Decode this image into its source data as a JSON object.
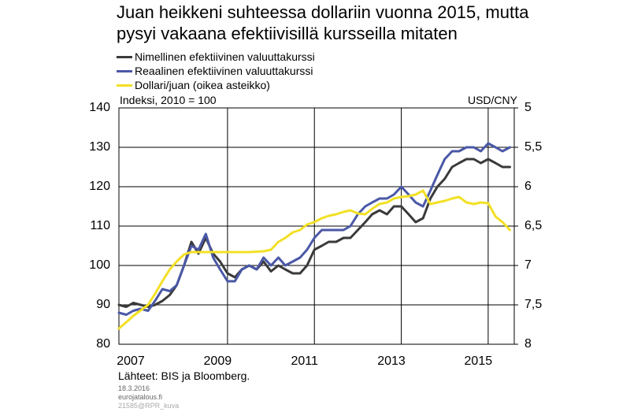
{
  "title_line1": "Juan heikkeni suhteessa dollariin vuonna 2015, mutta",
  "title_line2": "pysyi vakaana efektiivisillä kursseilla mitaten",
  "legend": [
    {
      "label": "Nimellinen efektiivinen valuuttakurssi",
      "color": "#3a3a3a"
    },
    {
      "label": "Reaalinen efektiivinen valuuttakurssi",
      "color": "#4a58a6"
    },
    {
      "label": "Dollari/juan (oikea asteikko)",
      "color": "#f2e024"
    }
  ],
  "axis_left_note": "Indeksi, 2010 = 100",
  "axis_right_note": "USD/CNY",
  "source": "Lähteet: BIS ja Bloomberg.",
  "footer": {
    "date": "18.3.2016",
    "site": "eurojatalous.fi",
    "code": "21585@RPR_kuva"
  },
  "chart_data": {
    "type": "line",
    "title": "Juan heikkeni suhteessa dollariin vuonna 2015, mutta pysyi vakaana efektiivisillä kursseilla mitaten",
    "xlim": [
      2007,
      2016.1
    ],
    "ylim_left": [
      80,
      140
    ],
    "ylim_right": [
      5,
      8
    ],
    "right_axis_reversed": true,
    "yticks_left": [
      "80",
      "90",
      "100",
      "110",
      "120",
      "130",
      "140"
    ],
    "yticks_left_values": [
      80,
      90,
      100,
      110,
      120,
      130,
      140
    ],
    "yticks_right": [
      "5",
      "5,5",
      "6",
      "6,5",
      "7",
      "7,5",
      "8"
    ],
    "yticks_right_values": [
      5,
      5.5,
      6,
      6.5,
      7,
      7.5,
      8
    ],
    "xticks": [
      "2007",
      "2009",
      "2011",
      "2013",
      "2015"
    ],
    "xticks_values": [
      2007,
      2009,
      2011,
      2013,
      2015
    ],
    "xlabel": "",
    "ylabel": "Indeksi, 2010 = 100",
    "ylabel_right": "USD/CNY",
    "grid": true,
    "legend_position": "top-left",
    "series": [
      {
        "name": "Nimellinen efektiivinen valuuttakurssi",
        "axis": "left",
        "color": "#3a3a3a",
        "x": [
          2007.0,
          2007.17,
          2007.33,
          2007.5,
          2007.67,
          2007.83,
          2008.0,
          2008.17,
          2008.33,
          2008.5,
          2008.67,
          2008.83,
          2009.0,
          2009.17,
          2009.33,
          2009.5,
          2009.67,
          2009.83,
          2010.0,
          2010.17,
          2010.33,
          2010.5,
          2010.67,
          2010.83,
          2011.0,
          2011.17,
          2011.33,
          2011.5,
          2011.67,
          2011.83,
          2012.0,
          2012.17,
          2012.33,
          2012.5,
          2012.67,
          2012.83,
          2013.0,
          2013.17,
          2013.33,
          2013.5,
          2013.67,
          2013.83,
          2014.0,
          2014.17,
          2014.33,
          2014.5,
          2014.67,
          2014.83,
          2015.0,
          2015.17,
          2015.33,
          2015.5,
          2015.67,
          2015.83,
          2016.0
        ],
        "values": [
          90,
          89.5,
          90.5,
          90,
          89.5,
          90,
          91,
          92.5,
          95,
          100,
          106,
          103,
          107,
          103,
          101,
          98,
          97,
          99,
          100,
          99,
          101,
          98.5,
          100,
          99,
          98,
          98,
          100,
          104,
          105,
          106,
          106,
          107,
          107,
          109,
          111,
          113,
          114,
          113,
          115,
          115,
          113,
          111,
          112,
          117,
          120,
          122,
          125,
          126,
          127,
          127,
          126,
          127,
          126,
          125,
          125
        ]
      },
      {
        "name": "Reaalinen efektiivinen valuuttakurssi",
        "axis": "left",
        "color": "#4a58a6",
        "x": [
          2007.0,
          2007.17,
          2007.33,
          2007.5,
          2007.67,
          2007.83,
          2008.0,
          2008.17,
          2008.33,
          2008.5,
          2008.67,
          2008.83,
          2009.0,
          2009.17,
          2009.33,
          2009.5,
          2009.67,
          2009.83,
          2010.0,
          2010.17,
          2010.33,
          2010.5,
          2010.67,
          2010.83,
          2011.0,
          2011.17,
          2011.33,
          2011.5,
          2011.67,
          2011.83,
          2012.0,
          2012.17,
          2012.33,
          2012.5,
          2012.67,
          2012.83,
          2013.0,
          2013.17,
          2013.33,
          2013.5,
          2013.67,
          2013.83,
          2014.0,
          2014.17,
          2014.33,
          2014.5,
          2014.67,
          2014.83,
          2015.0,
          2015.17,
          2015.33,
          2015.5,
          2015.67,
          2015.83,
          2016.0
        ],
        "values": [
          88,
          87.5,
          88.5,
          89,
          88.5,
          91,
          94,
          93.5,
          95,
          100,
          105,
          104,
          108,
          102,
          99,
          96,
          96,
          99,
          100,
          99,
          102,
          100,
          102,
          100,
          101,
          102,
          104,
          107,
          109,
          109,
          109,
          109,
          110,
          113,
          115,
          116,
          117,
          117,
          118,
          120,
          118,
          116,
          115,
          119,
          123,
          127,
          129,
          129,
          130,
          130,
          129,
          131,
          130,
          129,
          130
        ]
      },
      {
        "name": "Dollari/juan (oikea asteikko)",
        "axis": "right",
        "color": "#f2e024",
        "x": [
          2007.0,
          2007.17,
          2007.33,
          2007.5,
          2007.67,
          2007.83,
          2008.0,
          2008.17,
          2008.33,
          2008.5,
          2008.67,
          2008.83,
          2009.0,
          2009.33,
          2009.67,
          2010.0,
          2010.33,
          2010.5,
          2010.67,
          2010.83,
          2011.0,
          2011.17,
          2011.33,
          2011.5,
          2011.67,
          2011.83,
          2012.0,
          2012.17,
          2012.33,
          2012.5,
          2012.67,
          2012.83,
          2013.0,
          2013.17,
          2013.33,
          2013.5,
          2013.67,
          2013.83,
          2014.0,
          2014.17,
          2014.33,
          2014.5,
          2014.67,
          2014.83,
          2015.0,
          2015.17,
          2015.33,
          2015.5,
          2015.67,
          2015.83,
          2016.0
        ],
        "values": [
          7.8,
          7.72,
          7.64,
          7.57,
          7.5,
          7.36,
          7.2,
          7.05,
          6.95,
          6.86,
          6.83,
          6.83,
          6.83,
          6.83,
          6.83,
          6.83,
          6.82,
          6.8,
          6.7,
          6.65,
          6.58,
          6.55,
          6.48,
          6.45,
          6.4,
          6.37,
          6.35,
          6.32,
          6.3,
          6.34,
          6.35,
          6.28,
          6.22,
          6.2,
          6.15,
          6.13,
          6.12,
          6.1,
          6.05,
          6.22,
          6.2,
          6.18,
          6.15,
          6.13,
          6.2,
          6.22,
          6.2,
          6.21,
          6.38,
          6.45,
          6.55
        ]
      }
    ]
  }
}
